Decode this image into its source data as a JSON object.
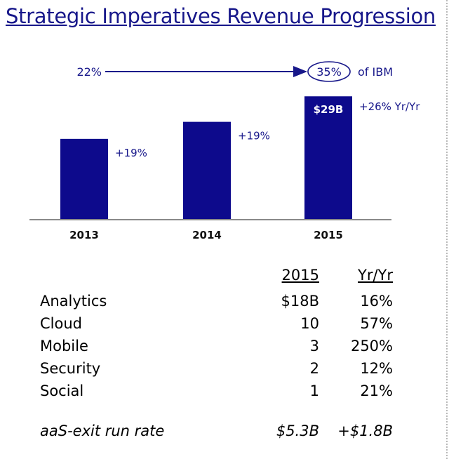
{
  "title": "Strategic Imperatives Revenue Progression",
  "colors": {
    "bar": "#0d0a8c",
    "text_blue": "#17178a",
    "axis": "#888888"
  },
  "chart_data": {
    "type": "bar",
    "categories": [
      "2013",
      "2014",
      "2015"
    ],
    "values": [
      19,
      23,
      29
    ],
    "value_labels": [
      "",
      "",
      "$29B"
    ],
    "growth_labels": [
      "+19%",
      "+19%",
      "+26% Yr/Yr"
    ],
    "share_annotation": {
      "from": "22%",
      "to": "35%",
      "suffix": "of IBM"
    },
    "xlabel": "",
    "ylabel": "",
    "ylim": [
      0,
      33
    ]
  },
  "table": {
    "headers": {
      "value": "2015",
      "yoy": "Yr/Yr"
    },
    "rows": [
      {
        "name": "Analytics",
        "value": "$18B",
        "yoy": "16%"
      },
      {
        "name": "Cloud",
        "value": "10",
        "yoy": "57%"
      },
      {
        "name": "Mobile",
        "value": "3",
        "yoy": "250%"
      },
      {
        "name": "Security",
        "value": "2",
        "yoy": "12%"
      },
      {
        "name": "Social",
        "value": "1",
        "yoy": "21%"
      }
    ],
    "footer": {
      "name": "aaS-exit run rate",
      "value": "$5.3B",
      "yoy": "+$1.8B"
    }
  }
}
